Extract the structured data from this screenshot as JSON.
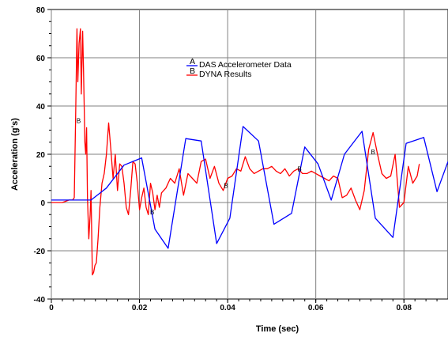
{
  "chart_data": {
    "type": "line",
    "xlabel": "Time (sec)",
    "ylabel": "Acceleration (g's)",
    "xlim": [
      0,
      0.09
    ],
    "ylim": [
      -40,
      80
    ],
    "xticks": [
      0,
      0.02,
      0.04,
      0.06,
      0.08
    ],
    "xtick_labels": [
      "0",
      "0.02",
      "0.04",
      "0.06",
      "0.08"
    ],
    "yticks": [
      -40,
      -20,
      0,
      20,
      40,
      60,
      80
    ],
    "ytick_labels": [
      "-40",
      "-20",
      "0",
      "20",
      "40",
      "60",
      "80"
    ],
    "grid": true,
    "legend_position": "top-center",
    "series": [
      {
        "name": "DAS Accelerometer Data",
        "marker": "A",
        "color": "#0000ff",
        "x": [
          0.0,
          0.009,
          0.0125,
          0.0165,
          0.0205,
          0.0235,
          0.0265,
          0.0305,
          0.034,
          0.0375,
          0.0405,
          0.0435,
          0.047,
          0.0505,
          0.0545,
          0.0575,
          0.0605,
          0.0635,
          0.0665,
          0.0705,
          0.0735,
          0.0775,
          0.0805,
          0.0845,
          0.0875,
          0.09
        ],
        "y": [
          1,
          1,
          6,
          15.5,
          18.5,
          -11,
          -19,
          26.5,
          25.5,
          -17,
          -6.5,
          31.5,
          25.5,
          -9,
          -4.5,
          23,
          16,
          1,
          20,
          29.5,
          -6.5,
          -14.5,
          24.5,
          27,
          4.5,
          17
        ]
      },
      {
        "name": "DYNA Results",
        "marker": "B",
        "color": "#ff0000",
        "x": [
          0.0,
          0.0025,
          0.004,
          0.0048,
          0.0052,
          0.0055,
          0.0058,
          0.006,
          0.0063,
          0.0066,
          0.0068,
          0.0071,
          0.0073,
          0.0076,
          0.0078,
          0.008,
          0.0082,
          0.0085,
          0.0088,
          0.009,
          0.0093,
          0.0096,
          0.0099,
          0.0102,
          0.0106,
          0.011,
          0.0115,
          0.012,
          0.0125,
          0.013,
          0.0135,
          0.014,
          0.0145,
          0.015,
          0.0155,
          0.016,
          0.0165,
          0.017,
          0.0175,
          0.018,
          0.0185,
          0.019,
          0.0195,
          0.02,
          0.0205,
          0.021,
          0.0215,
          0.022,
          0.0225,
          0.023,
          0.0235,
          0.024,
          0.0245,
          0.025,
          0.026,
          0.027,
          0.028,
          0.029,
          0.03,
          0.031,
          0.032,
          0.033,
          0.034,
          0.035,
          0.036,
          0.037,
          0.038,
          0.039,
          0.04,
          0.041,
          0.042,
          0.043,
          0.044,
          0.045,
          0.046,
          0.047,
          0.048,
          0.049,
          0.05,
          0.051,
          0.052,
          0.053,
          0.054,
          0.055,
          0.056,
          0.057,
          0.058,
          0.059,
          0.06,
          0.061,
          0.062,
          0.063,
          0.064,
          0.065,
          0.066,
          0.067,
          0.068,
          0.069,
          0.07,
          0.071,
          0.072,
          0.073,
          0.074,
          0.075,
          0.076,
          0.077,
          0.078,
          0.079,
          0.08,
          0.081,
          0.082,
          0.083,
          0.0835
        ],
        "y": [
          0,
          0,
          1,
          1,
          2,
          35,
          72,
          50,
          66,
          72,
          45,
          71,
          55,
          25,
          20,
          31,
          2,
          -15,
          -5,
          5,
          -30,
          -29,
          -26,
          -25,
          -15,
          -2,
          8,
          12,
          20,
          33,
          22,
          10,
          20,
          5,
          16,
          15,
          8,
          -2,
          -5,
          5,
          17,
          16,
          8,
          -3,
          2,
          6,
          -2,
          -5,
          8,
          4,
          -3,
          3,
          -2,
          4,
          6,
          10,
          8,
          14,
          3,
          12,
          10,
          8,
          17,
          18,
          10,
          15,
          8,
          5,
          10,
          11,
          14,
          13,
          19,
          14,
          12,
          13,
          14,
          14,
          15,
          13,
          12,
          14,
          11,
          13,
          14,
          12,
          12,
          13,
          12,
          11,
          10,
          9,
          11,
          10,
          2,
          3,
          6,
          1,
          -3,
          5,
          22,
          29,
          20,
          12,
          10,
          11,
          20,
          -2,
          0,
          15,
          8,
          11,
          16
        ]
      }
    ],
    "series_markers": [
      {
        "label": "B",
        "x": 0.0062,
        "y": 34
      },
      {
        "label": "B",
        "x": 0.0229,
        "y": -4
      },
      {
        "label": "B",
        "x": 0.0396,
        "y": 7
      },
      {
        "label": "B",
        "x": 0.0563,
        "y": 14
      },
      {
        "label": "B",
        "x": 0.073,
        "y": 21
      }
    ]
  }
}
